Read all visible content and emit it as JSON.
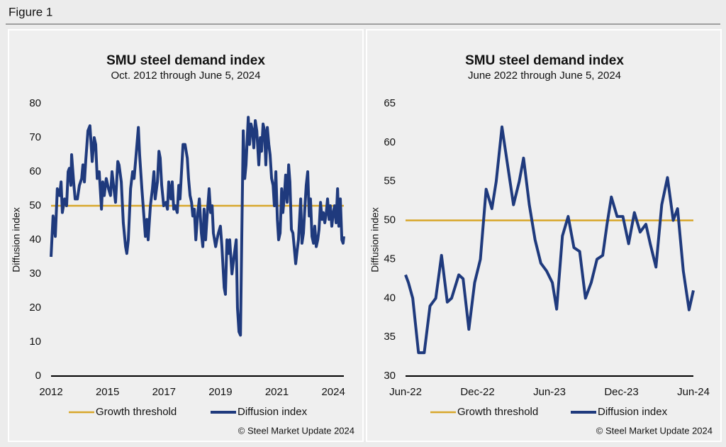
{
  "figure_label": "Figure 1",
  "chart_data": [
    {
      "type": "line",
      "title": "SMU steel demand index",
      "subtitle": "Oct. 2012 through June 5, 2024",
      "y_label": "Diffusion index",
      "x": [
        2012.75,
        2012.83,
        2012.92,
        2013.0,
        2013.09,
        2013.15,
        2013.2,
        2013.29,
        2013.37,
        2013.43,
        2013.48,
        2013.54,
        2013.57,
        2013.65,
        2013.71,
        2013.8,
        2013.88,
        2013.97,
        2014.02,
        2014.08,
        2014.13,
        2014.22,
        2014.3,
        2014.39,
        2014.47,
        2014.53,
        2014.59,
        2014.67,
        2014.76,
        2014.81,
        2014.87,
        2014.95,
        2015.04,
        2015.12,
        2015.18,
        2015.24,
        2015.32,
        2015.41,
        2015.46,
        2015.55,
        2015.63,
        2015.72,
        2015.77,
        2015.83,
        2015.92,
        2016.0,
        2016.06,
        2016.14,
        2016.23,
        2016.28,
        2016.37,
        2016.45,
        2016.51,
        2016.57,
        2016.62,
        2016.71,
        2016.79,
        2016.85,
        2016.9,
        2016.99,
        2017.05,
        2017.1,
        2017.16,
        2017.24,
        2017.33,
        2017.39,
        2017.44,
        2017.53,
        2017.58,
        2017.64,
        2017.7,
        2017.78,
        2017.84,
        2017.89,
        2017.95,
        2018.01,
        2018.09,
        2018.18,
        2018.23,
        2018.29,
        2018.35,
        2018.4,
        2018.46,
        2018.52,
        2018.6,
        2018.66,
        2018.74,
        2018.8,
        2018.85,
        2018.91,
        2018.97,
        2019.05,
        2019.11,
        2019.17,
        2019.22,
        2019.31,
        2019.36,
        2019.42,
        2019.5,
        2019.56,
        2019.65,
        2019.7,
        2019.76,
        2019.82,
        2019.87,
        2019.96,
        2020.04,
        2020.13,
        2020.18,
        2020.24,
        2020.3,
        2020.35,
        2020.41,
        2020.47,
        2020.52,
        2020.61,
        2020.66,
        2020.72,
        2020.78,
        2020.83,
        2020.89,
        2020.95,
        2021.03,
        2021.09,
        2021.14,
        2021.2,
        2021.26,
        2021.31,
        2021.37,
        2021.43,
        2021.48,
        2021.54,
        2021.6,
        2021.65,
        2021.71,
        2021.77,
        2021.82,
        2021.88,
        2021.94,
        2021.99,
        2022.05,
        2022.1,
        2022.16,
        2022.22,
        2022.27,
        2022.33,
        2022.39,
        2022.44,
        2022.5,
        2022.56,
        2022.61,
        2022.7,
        2022.75,
        2022.81,
        2022.87,
        2022.92,
        2022.98,
        2023.04,
        2023.09,
        2023.15,
        2023.21,
        2023.26,
        2023.32,
        2023.38,
        2023.43,
        2023.49,
        2023.55,
        2023.6,
        2023.66,
        2023.72,
        2023.77,
        2023.83,
        2023.88,
        2023.94,
        2024.0,
        2024.05,
        2024.11,
        2024.17,
        2024.22,
        2024.28,
        2024.34,
        2024.39,
        2024.42
      ],
      "xlim": [
        2012.75,
        2024.42
      ],
      "xticks": [
        {
          "value": 2012.75,
          "label": "2012"
        },
        {
          "value": 2015.0,
          "label": "2015"
        },
        {
          "value": 2017.25,
          "label": "2017"
        },
        {
          "value": 2019.5,
          "label": "2019"
        },
        {
          "value": 2021.75,
          "label": "2021"
        },
        {
          "value": 2024.0,
          "label": "2024"
        }
      ],
      "ylim": [
        0,
        80
      ],
      "yticks": [
        0,
        10,
        20,
        30,
        40,
        50,
        60,
        70,
        80
      ],
      "legend": "bottom",
      "series": [
        {
          "name": "Growth threshold",
          "color": "#d8a72b",
          "x": [
            2012.75,
            2024.42
          ],
          "values": [
            50,
            50
          ]
        },
        {
          "name": "Diffusion index",
          "color": "#1f3a7d",
          "values": [
            35,
            47,
            41,
            55,
            53,
            57,
            48,
            52,
            50,
            60,
            61,
            56,
            65,
            57,
            52,
            52,
            56,
            58,
            62,
            57,
            63,
            72,
            73.5,
            63,
            70,
            68,
            58,
            60,
            49,
            57,
            53,
            58,
            55,
            53,
            60,
            56,
            51,
            63,
            62,
            57,
            45,
            38,
            36,
            40,
            55,
            60,
            58,
            65,
            73,
            65,
            55,
            47,
            41,
            46,
            40,
            50,
            55,
            60,
            52,
            57,
            66,
            64,
            56,
            50,
            51,
            49,
            57,
            52,
            57,
            49,
            50,
            48,
            56,
            52,
            60,
            68,
            68,
            64,
            58,
            53,
            51,
            47,
            49,
            40,
            48,
            52,
            42,
            38,
            49,
            40,
            47,
            55,
            48,
            50,
            42,
            38,
            40,
            42,
            44,
            38,
            26,
            24,
            40,
            36,
            40,
            30,
            35,
            40,
            20,
            13,
            12,
            40,
            72,
            58,
            62,
            76,
            68,
            74,
            72,
            67,
            75,
            72,
            62,
            70,
            66,
            74,
            72,
            62,
            73,
            68,
            65,
            58,
            56,
            50,
            60,
            46,
            40,
            42,
            55,
            48,
            53,
            59,
            51,
            62,
            57,
            43,
            42,
            38,
            33,
            37,
            40,
            52,
            39,
            42,
            50,
            56,
            60,
            47,
            52,
            41,
            39,
            44,
            38,
            40,
            43,
            51,
            46,
            48,
            45,
            48,
            52,
            46,
            50,
            44,
            48,
            50,
            45,
            55,
            44,
            52,
            40,
            39,
            41
          ]
        }
      ],
      "source": "© Steel Market Update 2024"
    },
    {
      "type": "line",
      "title": "SMU steel demand index",
      "subtitle": "June 2022 through June 5, 2024",
      "y_label": "Diffusion index",
      "x": [
        2022.42,
        2022.44,
        2022.47,
        2022.51,
        2022.55,
        2022.59,
        2022.63,
        2022.67,
        2022.71,
        2022.74,
        2022.79,
        2022.82,
        2022.86,
        2022.9,
        2022.94,
        2022.98,
        2023.02,
        2023.05,
        2023.09,
        2023.13,
        2023.17,
        2023.21,
        2023.24,
        2023.28,
        2023.32,
        2023.36,
        2023.4,
        2023.44,
        2023.47,
        2023.51,
        2023.55,
        2023.59,
        2023.63,
        2023.67,
        2023.71,
        2023.75,
        2023.79,
        2023.82,
        2023.85,
        2023.89,
        2023.93,
        2023.97,
        2024.01,
        2024.05,
        2024.09,
        2024.12,
        2024.16,
        2024.2,
        2024.24,
        2024.28,
        2024.31,
        2024.35,
        2024.39,
        2024.42
      ],
      "xlim": [
        2022.42,
        2024.42
      ],
      "xticks": [
        {
          "value": 2022.42,
          "label": "Jun-22"
        },
        {
          "value": 2022.92,
          "label": "Dec-22"
        },
        {
          "value": 2023.42,
          "label": "Jun-23"
        },
        {
          "value": 2023.92,
          "label": "Dec-23"
        },
        {
          "value": 2024.42,
          "label": "Jun-24"
        }
      ],
      "ylim": [
        30,
        65
      ],
      "yticks": [
        30,
        35,
        40,
        45,
        50,
        55,
        60,
        65
      ],
      "legend": "bottom",
      "series": [
        {
          "name": "Growth threshold",
          "color": "#d8a72b",
          "x": [
            2022.42,
            2024.42
          ],
          "values": [
            50,
            50
          ]
        },
        {
          "name": "Diffusion index",
          "color": "#1f3a7d",
          "values": [
            43,
            42,
            40,
            33,
            33,
            39,
            40,
            45.5,
            39.5,
            40,
            43,
            42.5,
            36,
            42,
            45,
            54,
            51.5,
            55,
            62,
            57,
            52,
            55,
            58,
            52,
            47.5,
            44.5,
            43.5,
            42,
            38.6,
            48,
            50.5,
            46.5,
            46,
            40,
            42,
            45,
            45.5,
            49.5,
            53,
            50.5,
            50.5,
            47,
            51,
            48.5,
            49.5,
            47,
            44,
            52,
            55.5,
            50,
            51.5,
            43.5,
            38.5,
            41
          ]
        }
      ],
      "source": "© Steel Market Update 2024"
    }
  ]
}
